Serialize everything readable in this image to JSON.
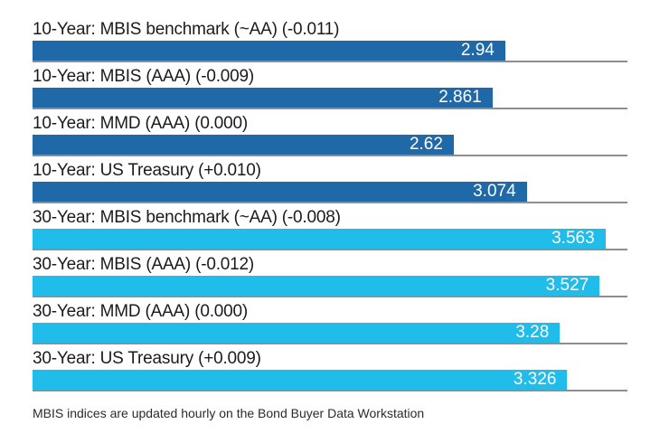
{
  "chart_data": {
    "type": "bar",
    "orientation": "horizontal",
    "title": "",
    "xlim": [
      0,
      3.7
    ],
    "grid": false,
    "legend": false,
    "bar_colors": {
      "ten_year": "#2069a8",
      "thirty_year": "#20bdea"
    },
    "separator_color": "#8e8e8e",
    "value_text_color": "#ffffff",
    "label_text_color": "#1b1b1b",
    "bars": [
      {
        "label": "10-Year: MBIS benchmark (~AA) (-0.011)",
        "value": 2.94,
        "display": "2.94",
        "group": "ten_year"
      },
      {
        "label": "10-Year: MBIS (AAA) (-0.009)",
        "value": 2.861,
        "display": "2.861",
        "group": "ten_year"
      },
      {
        "label": "10-Year: MMD (AAA) (0.000)",
        "value": 2.62,
        "display": "2.62",
        "group": "ten_year"
      },
      {
        "label": "10-Year: US Treasury (+0.010)",
        "value": 3.074,
        "display": "3.074",
        "group": "ten_year"
      },
      {
        "label": "30-Year: MBIS benchmark (~AA) (-0.008)",
        "value": 3.563,
        "display": "3.563",
        "group": "thirty_year"
      },
      {
        "label": "30-Year: MBIS (AAA) (-0.012)",
        "value": 3.527,
        "display": "3.527",
        "group": "thirty_year"
      },
      {
        "label": "30-Year: MMD (AAA) (0.000)",
        "value": 3.28,
        "display": "3.28",
        "group": "thirty_year"
      },
      {
        "label": "30-Year: US Treasury (+0.009)",
        "value": 3.326,
        "display": "3.326",
        "group": "thirty_year"
      }
    ],
    "footnote": "MBIS indices are updated hourly on the Bond Buyer Data Workstation"
  }
}
